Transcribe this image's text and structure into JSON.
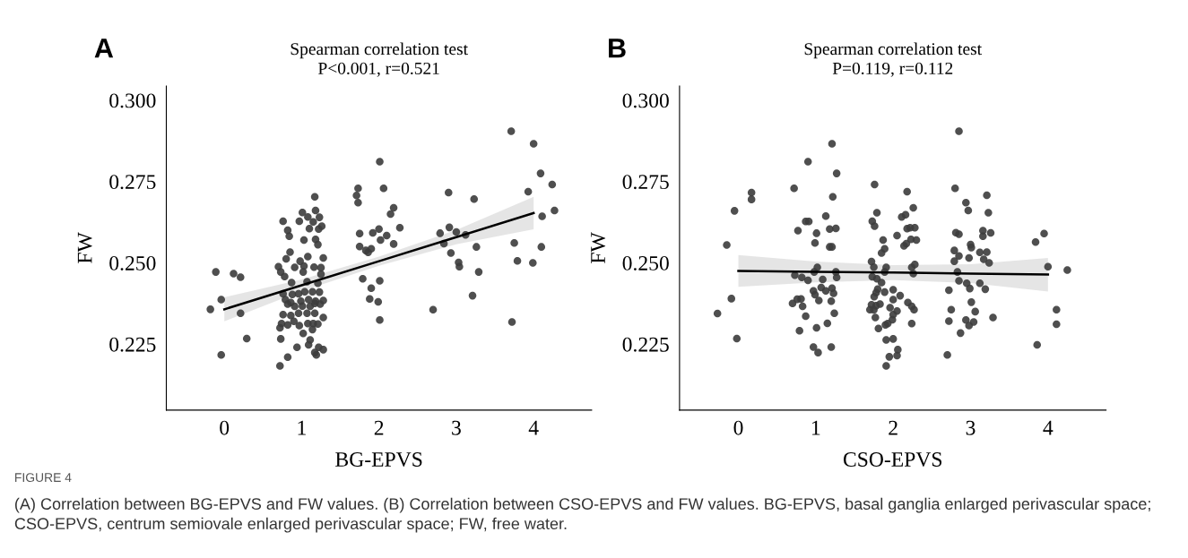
{
  "chart_data": [
    {
      "type": "scatter",
      "title": "Spearman correlation test",
      "subtitle": "P<0.001, r=0.521",
      "xlabel": "BG-EPVS",
      "ylabel": "FW",
      "annotations": [
        "A",
        "FIGURE 4",
        "(A) Correlation between BG-EPVS and FW values. (B) Correlation between CSO-EPVS and FW values. BG-EPVS, basal ganglia enlarged perivascular space; CSO-EPVS, centrum semiovale enlarged perivascular space; FW, free water."
      ],
      "xlim": [
        -0.75,
        4.75
      ],
      "ylim": [
        0.2047,
        0.3044
      ],
      "xticks": [
        0,
        1,
        2,
        3,
        4
      ],
      "yticks": [
        {
          "value": 0.225,
          "label": "0.225"
        },
        {
          "value": 0.25,
          "label": "0.250"
        },
        {
          "value": 0.275,
          "label": "0.275"
        },
        {
          "value": 0.3,
          "label": "0.300"
        }
      ],
      "grid": false,
      "series": [
        {
          "marker": "circle",
          "color": "#3c3c3c",
          "x": [
            3.71,
            4.0,
            2.01,
            4.09,
            4.24,
            1.73,
            2.06,
            1.71,
            1.73,
            2.9,
            3.23,
            3.93,
            1.17,
            2.19,
            2.15,
            4.27,
            1.01,
            1.18,
            1.08,
            1.23,
            0.76,
            0.97,
            1.15,
            1.26,
            1.1,
            0.82,
            1.22,
            4.11,
            2.27,
            2.91,
            1.75,
            1.92,
            2.0,
            2.1,
            2.79,
            3.0,
            3.12,
            0.84,
            1.03,
            1.18,
            1.21,
            2.02,
            2.19,
            2.84,
            3.75,
            1.75,
            1.83,
            1.86,
            1.9,
            3.26,
            4.1,
            0.85,
            1.08,
            1.28,
            2.93,
            3.79,
            3.99,
            0.8,
            0.98,
            0.7,
            3.03,
            3.04,
            1.16,
            1.25,
            0.91,
            1.03,
            -0.11,
            0.12,
            0.21,
            0.73,
            0.78,
            1.02,
            1.25,
            3.29,
            1.79,
            2.01,
            1.9,
            1.88,
            1.99,
            2.01,
            3.21,
            2.7,
            3.72,
            -0.04,
            -0.18,
            0.21,
            0.29,
            -0.04,
            0.87,
            1.07,
            1.21,
            0.76,
            0.88,
            0.96,
            1.04,
            1.14,
            1.23,
            0.79,
            0.86,
            0.99,
            1.09,
            1.18,
            1.28,
            0.82,
            0.91,
            1.01,
            1.11,
            1.17,
            1.24,
            0.76,
            0.86,
            0.96,
            1.07,
            1.17,
            1.28,
            0.74,
            0.82,
            0.9,
            0.97,
            1.08,
            1.15,
            1.21,
            0.72,
            1.14,
            1.02,
            0.73,
            1.11,
            0.94,
            1.09,
            1.22,
            1.28,
            1.17,
            1.19,
            0.82,
            0.72
          ],
          "values": [
            0.2905,
            0.2866,
            0.2811,
            0.2775,
            0.2741,
            0.2729,
            0.2729,
            0.2707,
            0.2685,
            0.2716,
            0.2696,
            0.2719,
            0.2703,
            0.2669,
            0.265,
            0.2661,
            0.2655,
            0.2661,
            0.2641,
            0.264,
            0.2628,
            0.2628,
            0.2626,
            0.2613,
            0.2605,
            0.26,
            0.2604,
            0.2643,
            0.2608,
            0.2609,
            0.259,
            0.2592,
            0.2604,
            0.2584,
            0.2591,
            0.2595,
            0.2586,
            0.2582,
            0.257,
            0.2572,
            0.2556,
            0.257,
            0.2558,
            0.2559,
            0.2561,
            0.255,
            0.2538,
            0.2532,
            0.2543,
            0.2549,
            0.2549,
            0.2533,
            0.2519,
            0.2515,
            0.253,
            0.2506,
            0.25,
            0.2512,
            0.2505,
            0.2488,
            0.2501,
            0.2488,
            0.2487,
            0.2485,
            0.2486,
            0.249,
            0.2472,
            0.2467,
            0.2456,
            0.2472,
            0.2458,
            0.2472,
            0.2465,
            0.2472,
            0.2451,
            0.2445,
            0.2422,
            0.2389,
            0.238,
            0.2324,
            0.2399,
            0.2356,
            0.2318,
            0.2387,
            0.2357,
            0.2345,
            0.2267,
            0.2217,
            0.2439,
            0.2442,
            0.2437,
            0.2405,
            0.2403,
            0.2405,
            0.2411,
            0.2411,
            0.241,
            0.2387,
            0.2378,
            0.2382,
            0.2387,
            0.2382,
            0.2384,
            0.2373,
            0.2366,
            0.2367,
            0.2366,
            0.2375,
            0.2373,
            0.2341,
            0.2338,
            0.2345,
            0.2345,
            0.2345,
            0.2332,
            0.2313,
            0.2309,
            0.232,
            0.2307,
            0.2313,
            0.2313,
            0.2312,
            0.23,
            0.2295,
            0.2283,
            0.2266,
            0.2263,
            0.224,
            0.2248,
            0.224,
            0.2233,
            0.2224,
            0.2217,
            0.221,
            0.2183
          ]
        },
        {
          "type": "line",
          "color": "#000000",
          "x": [
            0,
            1,
            2,
            3,
            4
          ],
          "values": [
            0.2357,
            0.2431,
            0.2505,
            0.2579,
            0.2653
          ],
          "lower": [
            0.232,
            0.2413,
            0.2491,
            0.2557,
            0.2603
          ],
          "upper": [
            0.2394,
            0.2449,
            0.2519,
            0.2601,
            0.2703
          ]
        }
      ]
    },
    {
      "type": "scatter",
      "title": "Spearman correlation test",
      "subtitle": "P=0.119, r=0.112",
      "xlabel": "CSO-EPVS",
      "ylabel": "FW",
      "annotations": [
        "B"
      ],
      "xlim": [
        -0.76,
        4.75
      ],
      "ylim": [
        0.2047,
        0.3044
      ],
      "xticks": [
        0,
        1,
        2,
        3,
        4
      ],
      "yticks": [
        {
          "value": 0.225,
          "label": "0.225"
        },
        {
          "value": 0.25,
          "label": "0.250"
        },
        {
          "value": 0.275,
          "label": "0.275"
        },
        {
          "value": 0.3,
          "label": "0.300"
        }
      ],
      "grid": false,
      "series": [
        {
          "marker": "circle",
          "color": "#3c3c3c",
          "x": [
            2.85,
            1.21,
            0.9,
            1.27,
            1.76,
            0.72,
            2.8,
            0.17,
            0.17,
            2.18,
            1.22,
            3.21,
            2.94,
            -0.05,
            1.79,
            2.97,
            3.23,
            2.26,
            1.13,
            2.11,
            2.16,
            0.87,
            0.91,
            1.73,
            1.76,
            0.77,
            1.01,
            1.18,
            1.26,
            2.18,
            2.28,
            2.22,
            2.81,
            2.85,
            3.16,
            3.26,
            3.16,
            3.95,
            2.05,
            1.87,
            2.23,
            2.3,
            2.17,
            0.99,
            3.84,
            -0.15,
            1.18,
            1.21,
            1.89,
            1.85,
            2.14,
            3.0,
            3.01,
            2.79,
            2.85,
            3.12,
            3.21,
            2.98,
            2.79,
            3.17,
            1.72,
            2.28,
            2.24,
            1.75,
            1.91,
            3.24,
            1.02,
            4.0,
            4.25,
            0.98,
            1.26,
            2.83,
            0.73,
            0.82,
            0.9,
            1.09,
            1.27,
            1.73,
            1.79,
            1.85,
            1.89,
            2.26,
            2.85,
            2.95,
            3.12,
            2.99,
            3.19,
            2.72,
            0.97,
            1.07,
            1.13,
            1.21,
            1.23,
            0.99,
            1.8,
            1.78,
            1.89,
            2.0,
            2.09,
            1.755,
            0.76,
            0.81,
            0.7,
            0.83,
            1.04,
            1.2,
            2.0,
            -0.09,
            2.19,
            2.27,
            2.24,
            1.72,
            1.78,
            1.83,
            1.7,
            1.75,
            1.96,
            2.05,
            3.01,
            3.06,
            2.75,
            4.11,
            -0.27,
            0.87,
            1.24,
            2.0,
            1.77,
            1.99,
            3.29,
            2.72,
            2.94,
            3.04,
            2.98,
            1.15,
            2.24,
            1.9,
            1.93,
            1.81,
            1.01,
            0.79,
            4.11,
            2.87,
            -0.02,
            1.91,
            2.0,
            3.86,
            0.97,
            1.2,
            1.03,
            2.06,
            2.05,
            1.95,
            2.7,
            1.91
          ],
          "values": [
            0.2905,
            0.2866,
            0.2811,
            0.2775,
            0.2741,
            0.2729,
            0.2729,
            0.2716,
            0.2695,
            0.2719,
            0.2703,
            0.2708,
            0.2685,
            0.266,
            0.2654,
            0.2661,
            0.2654,
            0.2669,
            0.2644,
            0.2641,
            0.2648,
            0.2627,
            0.2627,
            0.2628,
            0.2613,
            0.2599,
            0.2591,
            0.2604,
            0.2606,
            0.2605,
            0.2608,
            0.2608,
            0.2593,
            0.2588,
            0.2599,
            0.2592,
            0.2582,
            0.259,
            0.2584,
            0.257,
            0.2572,
            0.257,
            0.2559,
            0.2561,
            0.2564,
            0.2555,
            0.2549,
            0.2549,
            0.2543,
            0.253,
            0.2552,
            0.2556,
            0.2547,
            0.2538,
            0.2521,
            0.2532,
            0.2533,
            0.2515,
            0.2505,
            0.2511,
            0.2504,
            0.2495,
            0.2486,
            0.2487,
            0.2486,
            0.25,
            0.2486,
            0.2488,
            0.2478,
            0.2472,
            0.2472,
            0.2472,
            0.2462,
            0.2455,
            0.2446,
            0.2449,
            0.2455,
            0.2457,
            0.2451,
            0.2439,
            0.2472,
            0.2467,
            0.2445,
            0.2437,
            0.2437,
            0.2421,
            0.2419,
            0.2416,
            0.2414,
            0.2424,
            0.2414,
            0.2422,
            0.2406,
            0.2402,
            0.2419,
            0.2408,
            0.241,
            0.2417,
            0.2399,
            0.2396,
            0.2388,
            0.2389,
            0.2375,
            0.2366,
            0.2384,
            0.2382,
            0.2387,
            0.239,
            0.2378,
            0.2356,
            0.2366,
            0.2371,
            0.2368,
            0.2373,
            0.2356,
            0.2355,
            0.2362,
            0.2352,
            0.2379,
            0.235,
            0.2356,
            0.2356,
            0.2344,
            0.2336,
            0.2345,
            0.2341,
            0.2332,
            0.2325,
            0.2332,
            0.2321,
            0.2324,
            0.2318,
            0.2307,
            0.2314,
            0.2313,
            0.2309,
            0.2313,
            0.2298,
            0.23,
            0.2291,
            0.2311,
            0.2284,
            0.2267,
            0.2263,
            0.2266,
            0.2248,
            0.2241,
            0.2241,
            0.2224,
            0.2233,
            0.2215,
            0.2211,
            0.2217,
            0.2183
          ]
        },
        {
          "type": "line",
          "color": "#000000",
          "x": [
            0,
            1,
            2,
            3,
            4
          ],
          "values": [
            0.2475,
            0.2472,
            0.247,
            0.2467,
            0.2464
          ],
          "lower": [
            0.2426,
            0.244,
            0.2447,
            0.2438,
            0.2412
          ],
          "upper": [
            0.2524,
            0.2504,
            0.2493,
            0.2496,
            0.2515
          ]
        }
      ]
    }
  ]
}
